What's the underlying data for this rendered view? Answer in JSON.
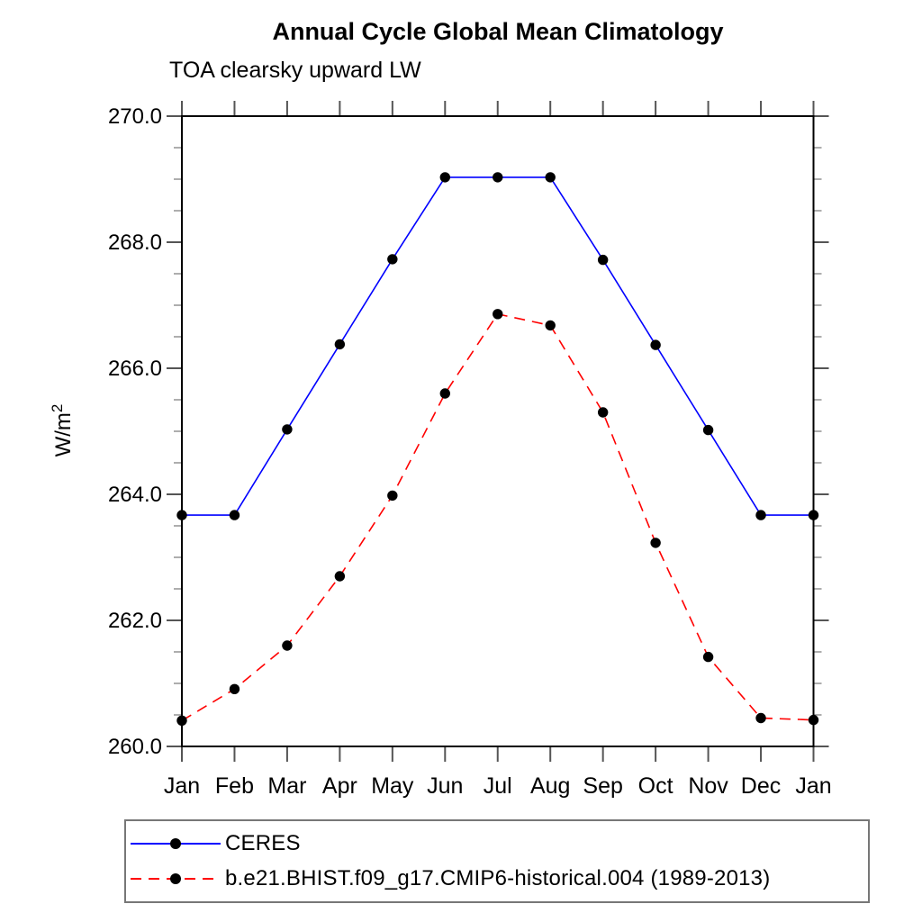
{
  "chart_data": {
    "type": "line",
    "title": "Annual Cycle Global Mean Climatology",
    "subtitle": "TOA clearsky upward LW",
    "ylabel": "W/m²",
    "ylabel_base": "W/m",
    "ylabel_sup": "2",
    "xlabel": "",
    "categories": [
      "Jan",
      "Feb",
      "Mar",
      "Apr",
      "May",
      "Jun",
      "Jul",
      "Aug",
      "Sep",
      "Oct",
      "Nov",
      "Dec",
      "Jan"
    ],
    "ylim": [
      260.0,
      270.0
    ],
    "y_major_step": 2.0,
    "y_minor_step": 0.5,
    "y_tick_decimals": 1,
    "grid": false,
    "legend_position": "bottom-left-box",
    "frame_color": "#000000",
    "major_tick_color": "#555555",
    "minor_tick_color": "#999999",
    "marker_color": "#000000",
    "series": [
      {
        "name": "CERES",
        "color": "#0000ff",
        "line_style": "solid",
        "marker": "filled-circle",
        "values": [
          263.67,
          263.67,
          265.03,
          266.38,
          267.73,
          269.03,
          269.03,
          269.03,
          267.72,
          266.37,
          265.02,
          263.67,
          263.67
        ]
      },
      {
        "name": "b.e21.BHIST.f09_g17.CMIP6-historical.004 (1989-2013)",
        "color": "#ff0000",
        "line_style": "dashed",
        "marker": "filled-circle",
        "values": [
          260.41,
          260.91,
          261.6,
          262.7,
          263.98,
          265.6,
          266.86,
          266.68,
          265.3,
          263.23,
          261.42,
          260.45,
          260.42
        ]
      }
    ]
  }
}
